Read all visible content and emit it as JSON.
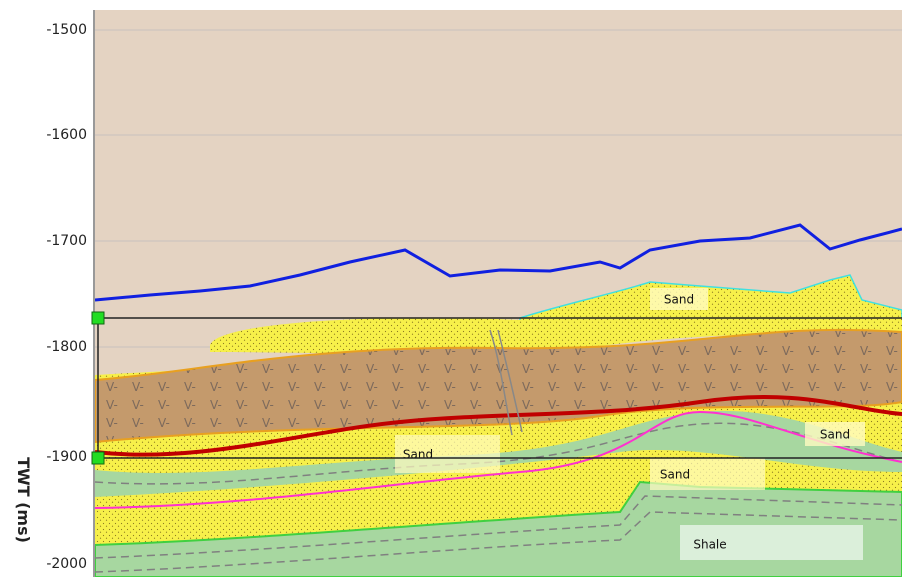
{
  "axis": {
    "label": "TWT (ms)",
    "ticks": [
      "-1500",
      "-1600",
      "-1700",
      "-1800",
      "-1900",
      "-2000"
    ]
  },
  "labels": [
    "Sand",
    "Sand",
    "Sand",
    "Sand",
    "Shale"
  ]
}
